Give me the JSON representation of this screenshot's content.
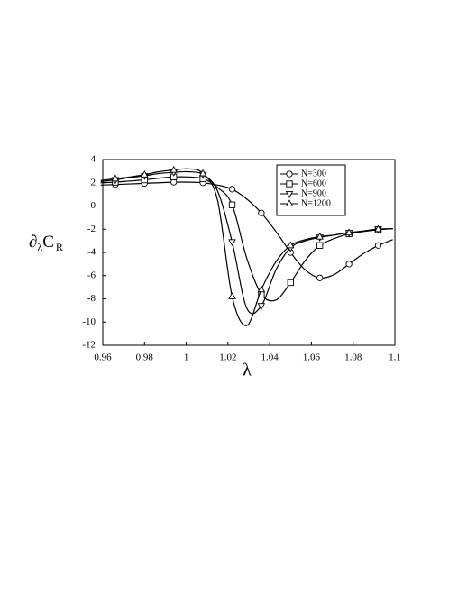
{
  "chart_data": {
    "type": "line",
    "xlabel": "λ",
    "ylabel": {
      "main": "∂",
      "main_sub": "λ",
      "symbol": "C",
      "symbol_sub": "R"
    },
    "x": [
      0.959,
      0.966,
      0.973,
      0.98,
      0.987,
      0.994,
      1.001,
      1.008,
      1.015,
      1.022,
      1.029,
      1.036,
      1.043,
      1.05,
      1.057,
      1.064,
      1.071,
      1.078,
      1.085,
      1.092,
      1.099
    ],
    "series": [
      {
        "name": "N=300",
        "color": "#000000",
        "marker": "circle",
        "values": [
          1.8,
          1.85,
          1.9,
          1.95,
          2.0,
          2.05,
          2.05,
          2.0,
          1.8,
          1.45,
          0.6,
          -0.6,
          -2.2,
          -4.0,
          -5.5,
          -6.2,
          -5.9,
          -5.0,
          -4.1,
          -3.4,
          -2.9
        ]
      },
      {
        "name": "N=600",
        "color": "#000000",
        "marker": "square",
        "values": [
          2.0,
          2.05,
          2.15,
          2.25,
          2.4,
          2.5,
          2.5,
          2.35,
          1.6,
          0.1,
          -4.5,
          -7.6,
          -8.1,
          -6.6,
          -4.7,
          -3.4,
          -2.8,
          -2.4,
          -2.2,
          -2.05,
          -1.95
        ]
      },
      {
        "name": "N=900",
        "color": "#000000",
        "marker": "triangle-down",
        "values": [
          2.1,
          2.25,
          2.45,
          2.6,
          2.8,
          2.9,
          2.95,
          2.7,
          1.3,
          -3.1,
          -8.8,
          -8.6,
          -5.5,
          -3.6,
          -3.0,
          -2.7,
          -2.5,
          -2.3,
          -2.15,
          -2.0,
          -1.95
        ]
      },
      {
        "name": "N=1200",
        "color": "#000000",
        "marker": "triangle-up",
        "values": [
          2.2,
          2.35,
          2.5,
          2.7,
          2.95,
          3.1,
          3.2,
          2.8,
          0.5,
          -7.8,
          -10.3,
          -7.2,
          -4.8,
          -3.4,
          -2.9,
          -2.65,
          -2.5,
          -2.3,
          -2.15,
          -2.0,
          -1.95
        ]
      }
    ],
    "xlim": [
      0.96,
      1.1
    ],
    "xticks": [
      0.96,
      0.98,
      1,
      1.02,
      1.04,
      1.06,
      1.08,
      1.1
    ],
    "ylim": [
      -12,
      4
    ],
    "yticks": [
      -12,
      -10,
      -8,
      -6,
      -4,
      -2,
      0,
      2,
      4
    ],
    "grid": false,
    "legend": "upper right"
  }
}
